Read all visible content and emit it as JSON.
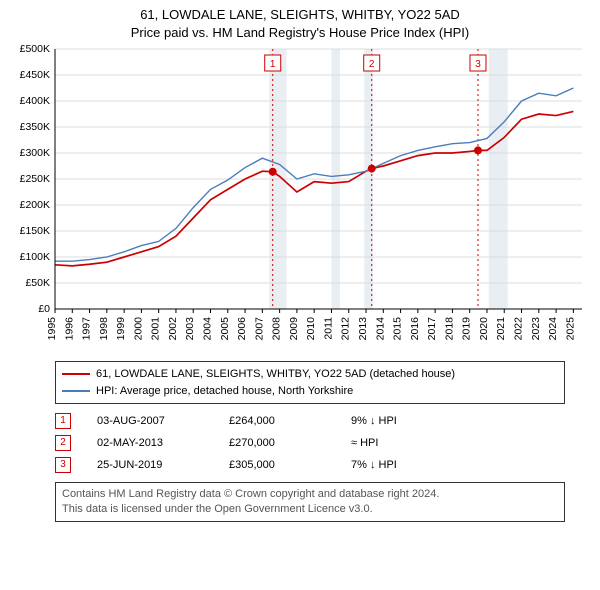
{
  "title_line1": "61, LOWDALE LANE, SLEIGHTS, WHITBY, YO22 5AD",
  "title_line2": "Price paid vs. HM Land Registry's House Price Index (HPI)",
  "title_fontsize": 13,
  "chart": {
    "type": "line",
    "xlim": [
      1995,
      2025.5
    ],
    "ylim": [
      0,
      500000
    ],
    "ytick_step": 50000,
    "yticks": [
      "£0",
      "£50K",
      "£100K",
      "£150K",
      "£200K",
      "£250K",
      "£300K",
      "£350K",
      "£400K",
      "£450K",
      "£500K"
    ],
    "x_years": [
      1995,
      1996,
      1997,
      1998,
      1999,
      2000,
      2001,
      2002,
      2003,
      2004,
      2005,
      2006,
      2007,
      2008,
      2009,
      2010,
      2011,
      2012,
      2013,
      2014,
      2015,
      2016,
      2017,
      2018,
      2019,
      2020,
      2021,
      2022,
      2023,
      2024,
      2025
    ],
    "background_color": "#ffffff",
    "grid_color": "#dcdcdc",
    "shaded_years": [
      {
        "from": 2007.4,
        "to": 2008.4,
        "color": "#e9eef3"
      },
      {
        "from": 2011.0,
        "to": 2011.5,
        "color": "#e9eef3"
      },
      {
        "from": 2012.9,
        "to": 2013.4,
        "color": "#e9eef3"
      },
      {
        "from": 2020.1,
        "to": 2021.2,
        "color": "#e9eef3"
      }
    ],
    "vertical_event_lines": [
      {
        "x": 2007.6,
        "label": "1",
        "color": "#cc0000"
      },
      {
        "x": 2013.33,
        "label": "2",
        "color": "#cc0000"
      },
      {
        "x": 2019.48,
        "label": "3",
        "color": "#cc0000"
      }
    ],
    "series": [
      {
        "name": "property",
        "color": "#cc0000",
        "width": 1.7,
        "points": [
          [
            1995,
            85000
          ],
          [
            1996,
            83000
          ],
          [
            1997,
            86000
          ],
          [
            1998,
            90000
          ],
          [
            1999,
            100000
          ],
          [
            2000,
            110000
          ],
          [
            2001,
            120000
          ],
          [
            2002,
            140000
          ],
          [
            2003,
            175000
          ],
          [
            2004,
            210000
          ],
          [
            2005,
            230000
          ],
          [
            2006,
            250000
          ],
          [
            2007,
            265000
          ],
          [
            2007.6,
            264000
          ],
          [
            2008,
            255000
          ],
          [
            2009,
            225000
          ],
          [
            2010,
            245000
          ],
          [
            2011,
            242000
          ],
          [
            2012,
            245000
          ],
          [
            2013,
            265000
          ],
          [
            2013.33,
            270000
          ],
          [
            2014,
            275000
          ],
          [
            2015,
            285000
          ],
          [
            2016,
            295000
          ],
          [
            2017,
            300000
          ],
          [
            2018,
            300000
          ],
          [
            2019,
            303000
          ],
          [
            2019.48,
            305000
          ],
          [
            2020,
            305000
          ],
          [
            2021,
            330000
          ],
          [
            2022,
            365000
          ],
          [
            2023,
            375000
          ],
          [
            2024,
            372000
          ],
          [
            2025,
            380000
          ]
        ]
      },
      {
        "name": "hpi",
        "color": "#4a7ebb",
        "width": 1.4,
        "points": [
          [
            1995,
            92000
          ],
          [
            1996,
            92000
          ],
          [
            1997,
            95000
          ],
          [
            1998,
            100000
          ],
          [
            1999,
            110000
          ],
          [
            2000,
            122000
          ],
          [
            2001,
            130000
          ],
          [
            2002,
            155000
          ],
          [
            2003,
            195000
          ],
          [
            2004,
            230000
          ],
          [
            2005,
            248000
          ],
          [
            2006,
            272000
          ],
          [
            2007,
            290000
          ],
          [
            2008,
            278000
          ],
          [
            2009,
            250000
          ],
          [
            2010,
            260000
          ],
          [
            2011,
            255000
          ],
          [
            2012,
            258000
          ],
          [
            2013,
            265000
          ],
          [
            2014,
            280000
          ],
          [
            2015,
            295000
          ],
          [
            2016,
            305000
          ],
          [
            2017,
            312000
          ],
          [
            2018,
            318000
          ],
          [
            2019,
            320000
          ],
          [
            2020,
            328000
          ],
          [
            2021,
            360000
          ],
          [
            2022,
            400000
          ],
          [
            2023,
            415000
          ],
          [
            2024,
            410000
          ],
          [
            2025,
            425000
          ]
        ]
      }
    ],
    "sale_markers": [
      {
        "n": "1",
        "x": 2007.6,
        "y": 264000,
        "color": "#cc0000"
      },
      {
        "n": "2",
        "x": 2013.33,
        "y": 270000,
        "color": "#cc0000"
      },
      {
        "n": "3",
        "x": 2019.48,
        "y": 305000,
        "color": "#cc0000"
      }
    ]
  },
  "legend": {
    "series1": {
      "color": "#cc0000",
      "label": "61, LOWDALE LANE, SLEIGHTS, WHITBY, YO22 5AD (detached house)"
    },
    "series2": {
      "color": "#4a7ebb",
      "label": "HPI: Average price, detached house, North Yorkshire"
    }
  },
  "sales": [
    {
      "n": "1",
      "date": "03-AUG-2007",
      "price": "£264,000",
      "delta": "9% ↓ HPI",
      "marker_color": "#cc0000"
    },
    {
      "n": "2",
      "date": "02-MAY-2013",
      "price": "£270,000",
      "delta": "≈ HPI",
      "marker_color": "#cc0000"
    },
    {
      "n": "3",
      "date": "25-JUN-2019",
      "price": "£305,000",
      "delta": "7% ↓ HPI",
      "marker_color": "#cc0000"
    }
  ],
  "license_line1": "Contains HM Land Registry data © Crown copyright and database right 2024.",
  "license_line2": "This data is licensed under the Open Government Licence v3.0."
}
